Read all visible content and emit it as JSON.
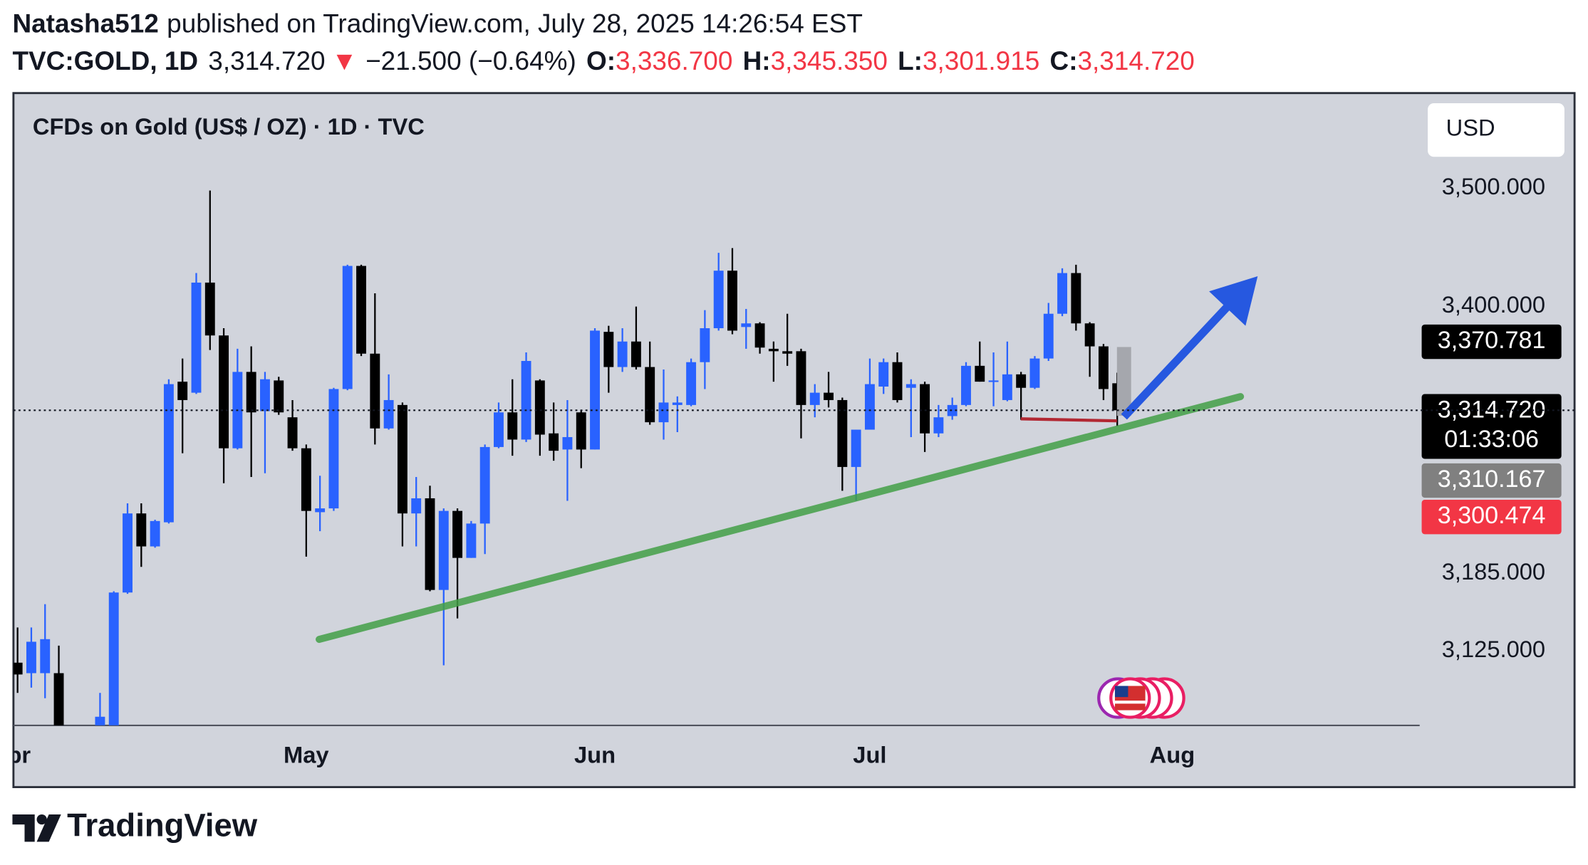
{
  "header": {
    "author": "Natasha512",
    "published": "published on TradingView.com, July 28, 2025 14:26:54 EST",
    "symbol": "TVC:GOLD, 1D",
    "last": "3,314.720",
    "arrow": "▼",
    "change": "−21.500 (−0.64%)",
    "ohlc": [
      {
        "key": "O:",
        "value": "3,336.700"
      },
      {
        "key": "H:",
        "value": "3,345.350"
      },
      {
        "key": "L:",
        "value": "3,301.915"
      },
      {
        "key": "C:",
        "value": "3,314.720"
      }
    ]
  },
  "chart_data": {
    "type": "candlestick",
    "title": "CFDs on Gold (US$ / OZ) · 1D · TVC",
    "currency": "USD",
    "open": [
      3116,
      3108,
      3108,
      3108,
      null,
      null,
      3060,
      3068,
      3170,
      3232,
      3206,
      3225,
      3338,
      3329,
      3420,
      3376,
      3284,
      3346,
      3314,
      3339,
      3309,
      3284,
      3233,
      3236,
      3332,
      3434,
      3361,
      3300,
      3319,
      3232,
      3244,
      3172,
      3234,
      3197,
      3224,
      3285,
      3313,
      3291,
      3339,
      3296,
      3283,
      3313,
      3283,
      3379,
      3350,
      3371,
      3350,
      3305,
      3319,
      3319,
      3354,
      3382,
      3430,
      3383,
      3386,
      3365,
      3363,
      3363,
      3319,
      3329,
      3323,
      3269,
      3299,
      3334,
      3354,
      3333,
      3336,
      3296,
      3310,
      3319,
      3351,
      3338,
      3323,
      3344,
      3333,
      3357,
      3394,
      3428,
      3386,
      3367,
      3336.7
    ],
    "high": [
      3143,
      3143,
      3161,
      3129,
      null,
      null,
      3093,
      3171,
      3240,
      3240,
      3227,
      3340,
      3357,
      3428,
      3498,
      3382,
      3365,
      3367,
      3346,
      3342,
      3323,
      3287,
      3262,
      3333,
      3435,
      3435,
      3411,
      3344,
      3321,
      3261,
      3254,
      3236,
      3236,
      3226,
      3287,
      3321,
      3340,
      3362,
      3340,
      3321,
      3323,
      3315,
      3382,
      3384,
      3382,
      3400,
      3371,
      3348,
      3326,
      3357,
      3397,
      3445,
      3449,
      3398,
      3387,
      3371,
      3394,
      3365,
      3336,
      3346,
      3325,
      3299,
      3357,
      3357,
      3362,
      3340,
      3338,
      3319,
      3325,
      3354,
      3371,
      3362,
      3371,
      3346,
      3359,
      3403,
      3432,
      3435,
      3387,
      3369,
      3345.35
    ],
    "low": [
      3093,
      3097,
      3089,
      3050,
      null,
      null,
      3055,
      3066,
      3169,
      3190,
      3205,
      3224,
      3280,
      3328,
      3364,
      3256,
      3283,
      3261,
      3264,
      3311,
      3282,
      3198,
      3218,
      3234,
      3331,
      3359,
      3287,
      3299,
      3206,
      3206,
      3171,
      3114,
      3150,
      3197,
      3200,
      3284,
      3278,
      3289,
      3278,
      3274,
      3242,
      3268,
      3283,
      3329,
      3346,
      3348,
      3303,
      3291,
      3297,
      3318,
      3332,
      3380,
      3377,
      3365,
      3361,
      3338,
      3351,
      3292,
      3309,
      3317,
      3250,
      3242,
      3299,
      3328,
      3321,
      3293,
      3281,
      3293,
      3307,
      3318,
      3338,
      3318,
      3322,
      3307,
      3332,
      3355,
      3392,
      3380,
      3342,
      3323,
      3301.915
    ],
    "close": [
      3107,
      3132,
      3134,
      3062,
      null,
      null,
      3075,
      3170,
      3232,
      3206,
      3226,
      3336,
      3323,
      3420,
      3376,
      3284,
      3346,
      3313,
      3340,
      3313,
      3284,
      3234,
      3236,
      3332,
      3434,
      3361,
      3300,
      3323,
      3232,
      3244,
      3172,
      3234,
      3197,
      3224,
      3285,
      3313,
      3291,
      3355,
      3295,
      3282,
      3293,
      3283,
      3380,
      3350,
      3371,
      3350,
      3305,
      3321,
      3321,
      3354,
      3382,
      3430,
      3380,
      3386,
      3366,
      3363,
      3361,
      3319,
      3329,
      3323,
      3269,
      3299,
      3336,
      3354,
      3323,
      3336,
      3296,
      3309,
      3319,
      3351,
      3338,
      3339,
      3344,
      3333,
      3357,
      3394,
      3428,
      3386,
      3367,
      3332,
      3314.72
    ],
    "up_color": "#2962ff",
    "down_color": "#000000",
    "ylim": [
      3068.5,
      3582.5
    ],
    "log_scale": true,
    "yticks": [
      {
        "value": 3125,
        "label": "3,125.000"
      },
      {
        "value": 3185,
        "label": "3,185.000"
      },
      {
        "value": 3400,
        "label": "3,400.000"
      },
      {
        "value": 3500,
        "label": "3,500.000"
      }
    ],
    "xlim": [
      -0.3,
      102
    ],
    "xticks": [
      {
        "value": -0.5,
        "label": "Apr"
      },
      {
        "value": 21,
        "label": "May"
      },
      {
        "value": 42,
        "label": "Jun"
      },
      {
        "value": 62,
        "label": "Jul"
      },
      {
        "value": 84,
        "label": "Aug"
      }
    ],
    "price_labels": [
      {
        "value": 3370.781,
        "label": "3,370.781",
        "color": "#000000"
      },
      {
        "value": 3314.72,
        "label": "3,314.720",
        "color": "#000000"
      },
      {
        "value": 3310.167,
        "label": "3,310.167",
        "color": "#808080"
      },
      {
        "value": 3300.474,
        "label": "3,300.474",
        "color": "#f23645"
      }
    ],
    "countdown": "01:33:06"
  },
  "footer": {
    "brand": "TradingView"
  }
}
